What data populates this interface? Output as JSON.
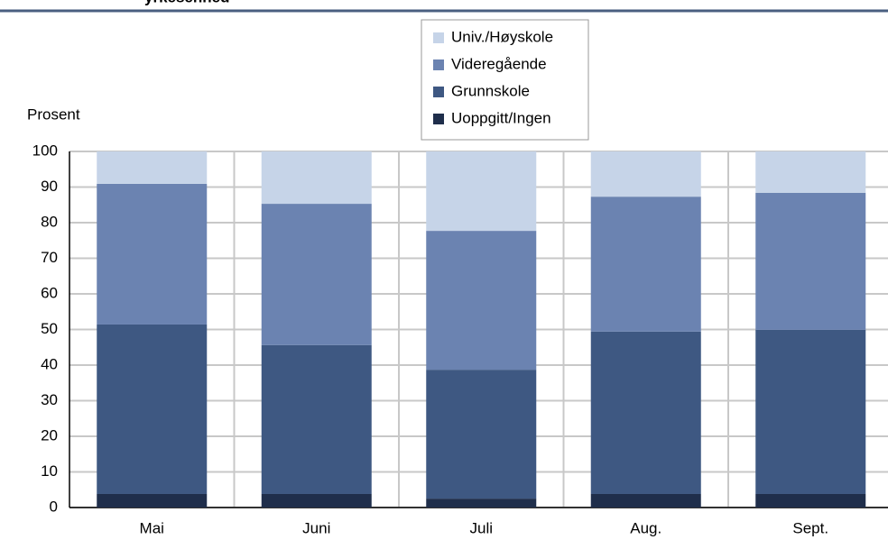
{
  "chart_data": {
    "type": "stacked_bar",
    "title": "yrkesenhed",
    "ylabel": "Prosent",
    "categories": [
      "Mai",
      "Juni",
      "Juli",
      "Aug.",
      "Sept."
    ],
    "series": [
      {
        "name": "Uoppgitt/Ingen",
        "color": "#1f2e4b",
        "values": [
          3.8,
          3.8,
          2.5,
          3.8,
          3.8
        ]
      },
      {
        "name": "Grunnskole",
        "color": "#3e5882",
        "values": [
          47.6,
          41.8,
          36.2,
          45.6,
          46.1
        ]
      },
      {
        "name": "Videregående",
        "color": "#6b83b1",
        "values": [
          39.5,
          39.7,
          39.0,
          37.9,
          38.5
        ]
      },
      {
        "name": "Univ./Høyskole",
        "color": "#c6d4e8",
        "values": [
          9.1,
          14.7,
          22.3,
          12.7,
          11.6
        ]
      }
    ],
    "ylim": [
      0,
      100
    ],
    "yticks": [
      0,
      10,
      20,
      30,
      40,
      50,
      60,
      70,
      80,
      90,
      100
    ],
    "grid": true
  }
}
